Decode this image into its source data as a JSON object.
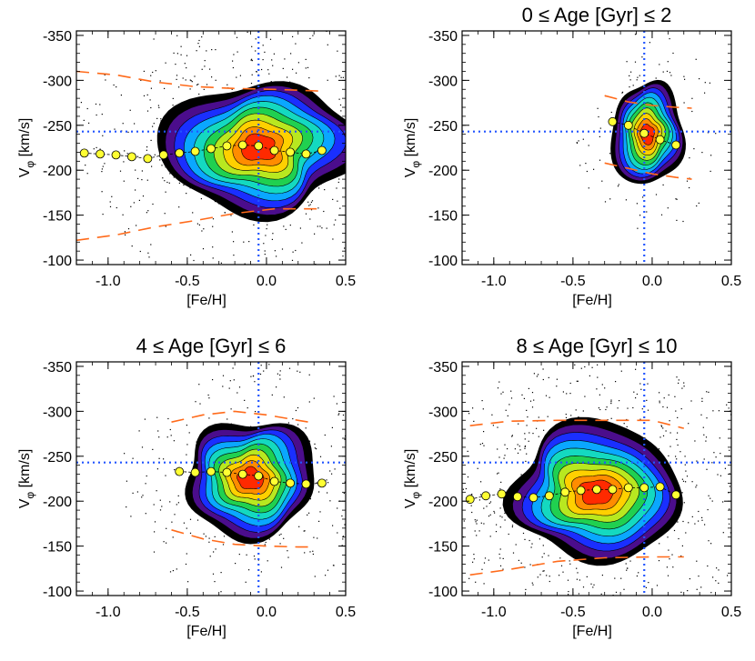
{
  "chart_data": [
    {
      "type": "contour",
      "title": "",
      "xlabel": "[Fe/H]",
      "ylabel": "V_phi [km/s]",
      "xlim": [
        -1.2,
        0.5
      ],
      "ylim": [
        -95,
        -355
      ],
      "y_axis": "reversed",
      "xticks": [
        -1.0,
        -0.5,
        0.0,
        0.5
      ],
      "xtick_labels": [
        "-1.0",
        "-0.5",
        "0.0",
        "0.5"
      ],
      "yticks": [
        -100,
        -150,
        -200,
        -250,
        -300,
        -350
      ],
      "ytick_labels": [
        "-100",
        "-150",
        "-200",
        "-250",
        "-300",
        "-350"
      ],
      "reference_lines": {
        "feh": -0.05,
        "vphi": -243
      },
      "contours": {
        "center": [
          -0.05,
          -225
        ],
        "x_radius": 0.6,
        "y_radius": 75,
        "colors": [
          "#000000",
          "#4b0d8c",
          "#1a2fff",
          "#0aa7ff",
          "#14d9c0",
          "#20d050",
          "#b8e820",
          "#ffd000",
          "#ff8c00",
          "#ff2a00"
        ]
      },
      "dispersion_curves": [
        {
          "feh": [
            -1.2,
            -0.95,
            -0.7,
            -0.45,
            -0.2,
            0.05,
            0.35
          ],
          "vphi": [
            -310,
            -306,
            -298,
            -293,
            -291,
            -290,
            -288
          ]
        },
        {
          "feh": [
            -1.2,
            -0.95,
            -0.7,
            -0.45,
            -0.2,
            0.05,
            0.35
          ],
          "vphi": [
            -122,
            -128,
            -137,
            -144,
            -152,
            -157,
            -157
          ]
        }
      ],
      "median_points": {
        "feh": [
          -1.15,
          -1.05,
          -0.95,
          -0.85,
          -0.75,
          -0.65,
          -0.55,
          -0.45,
          -0.35,
          -0.25,
          -0.15,
          -0.05,
          0.05,
          0.15,
          0.25,
          0.35
        ],
        "vphi": [
          -219,
          -218,
          -217,
          -215,
          -213,
          -217,
          -219,
          -221,
          -224,
          -227,
          -228,
          -227,
          -222,
          -220,
          -218,
          -222
        ]
      }
    },
    {
      "type": "contour",
      "title": "0 ≤ Age [Gyr] ≤ 2",
      "xlabel": "[Fe/H]",
      "ylabel": "V_phi [km/s]",
      "xlim": [
        -1.2,
        0.5
      ],
      "ylim": [
        -95,
        -355
      ],
      "y_axis": "reversed",
      "xticks": [
        -1.0,
        -0.5,
        0.0,
        0.5
      ],
      "xtick_labels": [
        "-1.0",
        "-0.5",
        "0.0",
        "0.5"
      ],
      "yticks": [
        -100,
        -150,
        -200,
        -250,
        -300,
        -350
      ],
      "ytick_labels": [
        "-100",
        "-150",
        "-200",
        "-250",
        "-300",
        "-350"
      ],
      "reference_lines": {
        "feh": -0.05,
        "vphi": -243
      },
      "contours": {
        "center": [
          -0.03,
          -240
        ],
        "x_radius": 0.23,
        "y_radius": 58,
        "colors": [
          "#000000",
          "#4b0d8c",
          "#1a2fff",
          "#0aa7ff",
          "#14d9c0",
          "#20d050",
          "#b8e820",
          "#ffd000",
          "#ff8c00",
          "#ff2a00"
        ]
      },
      "dispersion_curves": [
        {
          "feh": [
            -0.3,
            -0.15,
            0.0,
            0.15,
            0.25
          ],
          "vphi": [
            -283,
            -276,
            -272,
            -270,
            -269
          ]
        },
        {
          "feh": [
            -0.3,
            -0.15,
            0.0,
            0.15,
            0.25
          ],
          "vphi": [
            -208,
            -202,
            -196,
            -192,
            -190
          ]
        }
      ],
      "median_points": {
        "feh": [
          -0.25,
          -0.15,
          -0.05,
          0.05,
          0.15
        ],
        "vphi": [
          -254,
          -250,
          -241,
          -234,
          -228
        ]
      }
    },
    {
      "type": "contour",
      "title": "4 ≤ Age [Gyr] ≤ 6",
      "xlabel": "[Fe/H]",
      "ylabel": "V_phi [km/s]",
      "xlim": [
        -1.2,
        0.5
      ],
      "ylim": [
        -95,
        -355
      ],
      "y_axis": "reversed",
      "xticks": [
        -1.0,
        -0.5,
        0.0,
        0.5
      ],
      "xtick_labels": [
        "-1.0",
        "-0.5",
        "0.0",
        "0.5"
      ],
      "yticks": [
        -100,
        -150,
        -200,
        -250,
        -300,
        -350
      ],
      "ytick_labels": [
        "-100",
        "-150",
        "-200",
        "-250",
        "-300",
        "-350"
      ],
      "reference_lines": {
        "feh": -0.05,
        "vphi": -243
      },
      "contours": {
        "center": [
          -0.1,
          -225
        ],
        "x_radius": 0.42,
        "y_radius": 65,
        "colors": [
          "#000000",
          "#4b0d8c",
          "#1a2fff",
          "#0aa7ff",
          "#14d9c0",
          "#20d050",
          "#b8e820",
          "#ffd000",
          "#ff8c00",
          "#ff2a00"
        ]
      },
      "dispersion_curves": [
        {
          "feh": [
            -0.6,
            -0.4,
            -0.2,
            0.0,
            0.2,
            0.3
          ],
          "vphi": [
            -288,
            -296,
            -300,
            -296,
            -290,
            -287
          ]
        },
        {
          "feh": [
            -0.6,
            -0.4,
            -0.2,
            0.0,
            0.2,
            0.3
          ],
          "vphi": [
            -168,
            -158,
            -152,
            -150,
            -149,
            -149
          ]
        }
      ],
      "median_points": {
        "feh": [
          -0.55,
          -0.45,
          -0.35,
          -0.25,
          -0.15,
          -0.05,
          0.05,
          0.15,
          0.25,
          0.35
        ],
        "vphi": [
          -233,
          -232,
          -233,
          -232,
          -230,
          -228,
          -222,
          -220,
          -219,
          -220
        ]
      }
    },
    {
      "type": "contour",
      "title": "8 ≤ Age [Gyr] ≤ 10",
      "xlabel": "[Fe/H]",
      "ylabel": "V_phi [km/s]",
      "xlim": [
        -1.2,
        0.5
      ],
      "ylim": [
        -95,
        -355
      ],
      "y_axis": "reversed",
      "xticks": [
        -1.0,
        -0.5,
        0.0,
        0.5
      ],
      "xtick_labels": [
        "-1.0",
        "-0.5",
        "0.0",
        "0.5"
      ],
      "yticks": [
        -100,
        -150,
        -200,
        -250,
        -300,
        -350
      ],
      "ytick_labels": [
        "-100",
        "-150",
        "-200",
        "-250",
        "-300",
        "-350"
      ],
      "reference_lines": {
        "feh": -0.05,
        "vphi": -243
      },
      "contours": {
        "center": [
          -0.35,
          -210
        ],
        "x_radius": 0.55,
        "y_radius": 75,
        "colors": [
          "#000000",
          "#4b0d8c",
          "#1a2fff",
          "#0aa7ff",
          "#14d9c0",
          "#20d050",
          "#b8e820",
          "#ffd000",
          "#ff8c00",
          "#ff2a00"
        ]
      },
      "dispersion_curves": [
        {
          "feh": [
            -1.15,
            -0.9,
            -0.6,
            -0.3,
            0.0,
            0.2
          ],
          "vphi": [
            -284,
            -289,
            -290,
            -290,
            -290,
            -281
          ]
        },
        {
          "feh": [
            -1.15,
            -0.9,
            -0.6,
            -0.3,
            0.0,
            0.2
          ],
          "vphi": [
            -118,
            -124,
            -133,
            -137,
            -138,
            -138
          ]
        }
      ],
      "median_points": {
        "feh": [
          -1.15,
          -1.05,
          -0.95,
          -0.85,
          -0.75,
          -0.65,
          -0.55,
          -0.45,
          -0.35,
          -0.25,
          -0.15,
          -0.05,
          0.05,
          0.15
        ],
        "vphi": [
          -202,
          -206,
          -208,
          -205,
          -204,
          -206,
          -210,
          -212,
          -213,
          -213,
          -215,
          -215,
          -216,
          -207
        ]
      }
    }
  ]
}
